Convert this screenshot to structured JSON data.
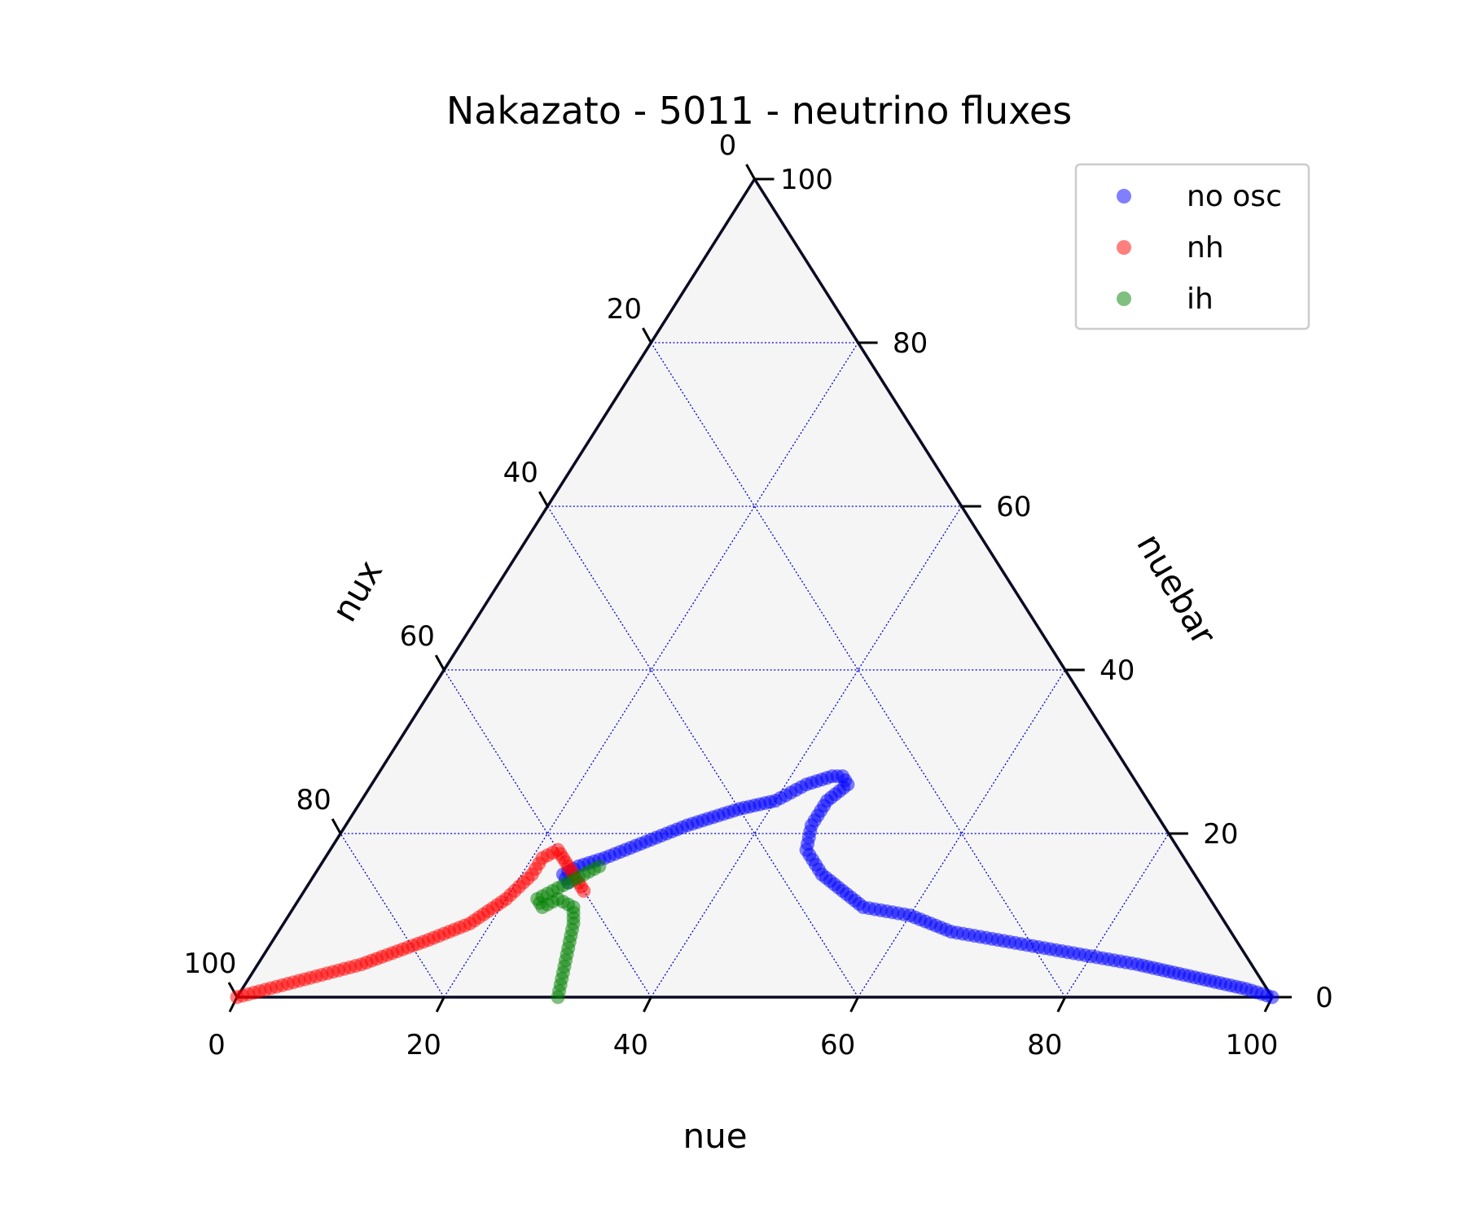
{
  "chart_data": {
    "type": "scatter",
    "subtype": "ternary",
    "title": "Nakazato - 5011 - neutrino fluxes",
    "axes": {
      "bottom": {
        "label": "nue"
      },
      "right": {
        "label": "nuebar"
      },
      "left": {
        "label": "nux"
      }
    },
    "bottom_ticks": [
      "0",
      "20",
      "40",
      "60",
      "80",
      "100"
    ],
    "right_ticks": [
      "0",
      "20",
      "40",
      "60",
      "80",
      "100"
    ],
    "left_ticks": [
      "0",
      "20",
      "40",
      "60",
      "80",
      "100"
    ],
    "range": [
      0,
      100
    ],
    "grid": true,
    "grid_step": 20,
    "legend_position": "top-right",
    "series": [
      {
        "name": "no osc",
        "color": "#0000ff",
        "points": [
          [
            100,
            0,
            0
          ],
          [
            97,
            1,
            2
          ],
          [
            93,
            2,
            5
          ],
          [
            89,
            3,
            8
          ],
          [
            85,
            4,
            11
          ],
          [
            80,
            5,
            15
          ],
          [
            75,
            6,
            19
          ],
          [
            70,
            7,
            23
          ],
          [
            65,
            8,
            27
          ],
          [
            60,
            10,
            30
          ],
          [
            55,
            11,
            34
          ],
          [
            52,
            13,
            35
          ],
          [
            49,
            15,
            36
          ],
          [
            46,
            18,
            36
          ],
          [
            45,
            21,
            34
          ],
          [
            45,
            24,
            31
          ],
          [
            46,
            26,
            28
          ],
          [
            45,
            27,
            28
          ],
          [
            44,
            27,
            29
          ],
          [
            42,
            26,
            32
          ],
          [
            40,
            24,
            36
          ],
          [
            37,
            23,
            40
          ],
          [
            33,
            21,
            46
          ],
          [
            30,
            19,
            51
          ],
          [
            27,
            17,
            56
          ],
          [
            25,
            16,
            59
          ],
          [
            24,
            15,
            61
          ],
          [
            25,
            14,
            61
          ]
        ]
      },
      {
        "name": "nh",
        "color": "#ff0000",
        "points": [
          [
            0,
            0,
            100
          ],
          [
            5,
            2,
            93
          ],
          [
            10,
            4,
            86
          ],
          [
            15,
            7,
            78
          ],
          [
            18,
            9,
            73
          ],
          [
            20,
            12,
            68
          ],
          [
            21,
            15,
            64
          ],
          [
            21,
            17,
            62
          ],
          [
            22,
            18,
            60
          ],
          [
            23,
            17,
            60
          ],
          [
            24,
            16,
            60
          ],
          [
            25,
            15,
            60
          ],
          [
            26,
            14,
            60
          ],
          [
            27,
            13,
            60
          ]
        ]
      },
      {
        "name": "ih",
        "color": "#008000",
        "points": [
          [
            31,
            0,
            69
          ],
          [
            30,
            3,
            67
          ],
          [
            29,
            6,
            65
          ],
          [
            28,
            9,
            63
          ],
          [
            27,
            11,
            62
          ],
          [
            25,
            12,
            63
          ],
          [
            24,
            11,
            65
          ],
          [
            23,
            12,
            65
          ],
          [
            24,
            13,
            63
          ],
          [
            25,
            14,
            61
          ],
          [
            26,
            15,
            59
          ],
          [
            27,
            16,
            57
          ]
        ]
      }
    ]
  }
}
